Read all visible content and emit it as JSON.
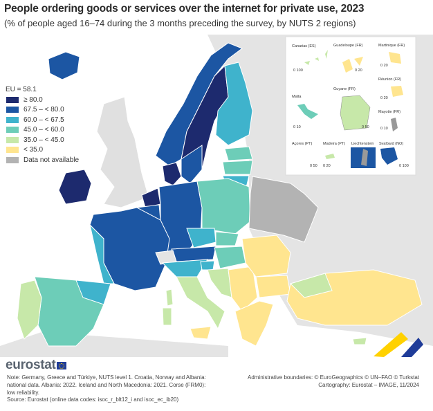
{
  "title": "People ordering goods or services over the internet for private use, 2023",
  "subtitle": "(% of people aged 16–74 during the 3 months preceding the survey, by NUTS 2 regions)",
  "legend": {
    "eu_value": "EU = 58.1",
    "items": [
      {
        "label": "≥ 80.0",
        "color": "#1d2a6e"
      },
      {
        "label": "67.5 – < 80.0",
        "color": "#1c56a3"
      },
      {
        "label": "60.0 – < 67.5",
        "color": "#3fb3cc"
      },
      {
        "label": "45.0 – < 60.0",
        "color": "#6dcdb8"
      },
      {
        "label": "35.0 – < 45.0",
        "color": "#c7e8a9"
      },
      {
        "label": "< 35.0",
        "color": "#ffe58f"
      },
      {
        "label": "Data not available",
        "color": "#b3b3b3"
      }
    ]
  },
  "insets": {
    "canarias": "Canarias (ES)",
    "guadeloupe": "Guadeloupe (FR)",
    "martinique": "Martinique (FR)",
    "reunion": "Réunion (FR)",
    "malta": "Malta",
    "guyane": "Guyane (FR)",
    "mayotte": "Mayotte (FR)",
    "acores": "Açores (PT)",
    "madeira": "Madeira (PT)",
    "liechtenstein": "Liechtenstein",
    "svalbard": "Svalbard (NO)",
    "scales": {
      "canarias": "0  100",
      "guadeloupe": "0  20",
      "martinique": "0  20",
      "reunion": "0  20",
      "malta": "0  10",
      "guyane": "0 50",
      "mayotte": "0  10",
      "acores": "0  50",
      "madeira": "0 20",
      "svalbard": "0 100"
    }
  },
  "logo": "eurostat",
  "note": "Note: Germany, Greece and Türkiye, NUTS level 1. Croatia, Norway and Albania: national data. Albania: 2022. Iceland and North Macedonia: 2021. Corse (FRM0): low reliability.",
  "source": "Source: Eurostat (online data codes: isoc_r_blt12_i and isoc_ec_ib20)",
  "credits": {
    "boundaries": "Administrative boundaries: © EuroGeographics © UN–FAO © Turkstat",
    "cartography": "Cartography: Eurostat – IMAGE, 11/2024"
  }
}
